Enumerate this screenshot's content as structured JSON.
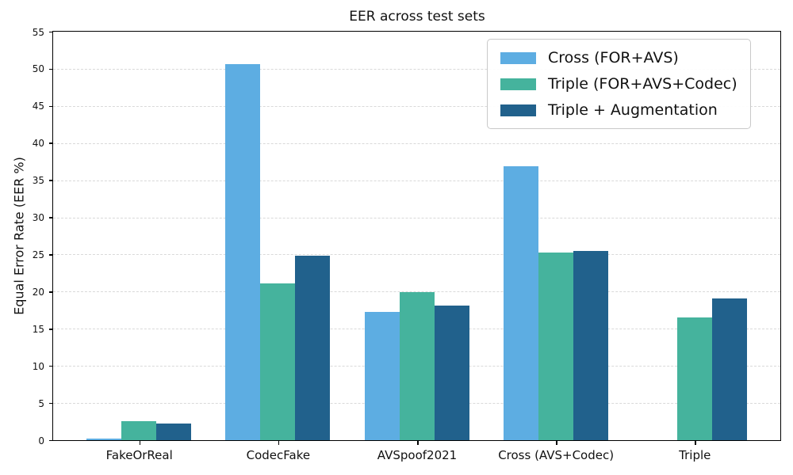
{
  "chart_data": {
    "type": "bar",
    "title": "EER across test sets",
    "ylabel": "Equal Error Rate (EER %)",
    "xlabel": "",
    "categories": [
      "FakeOrReal",
      "CodecFake",
      "AVSpoof2021",
      "Cross (AVS+Codec)",
      "Triple"
    ],
    "series": [
      {
        "name": "Cross (FOR+AVS)",
        "color": "#5DADE2",
        "values": [
          0.25,
          50.6,
          17.3,
          36.9,
          0
        ]
      },
      {
        "name": "Triple (FOR+AVS+Codec)",
        "color": "#45B39D",
        "values": [
          2.6,
          21.1,
          19.9,
          25.3,
          16.5
        ]
      },
      {
        "name": "Triple + Augmentation",
        "color": "#21618C",
        "values": [
          2.2,
          24.8,
          18.1,
          25.5,
          19.1
        ]
      }
    ],
    "ylim": [
      0,
      55
    ],
    "ytick_step": 5,
    "yticks": [
      0,
      5,
      10,
      15,
      20,
      25,
      30,
      35,
      40,
      45,
      50,
      55
    ],
    "grid": "horizontal-dashed",
    "legend_position": "upper-right",
    "colors": {
      "grid": "#d9d9d9",
      "spine": "#000000",
      "text": "#111111",
      "background": "#ffffff"
    }
  }
}
